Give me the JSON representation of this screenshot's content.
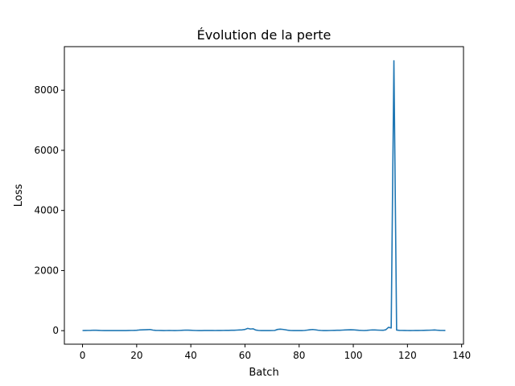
{
  "chart_data": {
    "type": "line",
    "title": "Évolution de la perte",
    "xlabel": "Batch",
    "ylabel": "Loss",
    "xlim": [
      -6.7,
      140.7
    ],
    "ylim": [
      -450,
      9450
    ],
    "xticks": [
      0,
      20,
      40,
      60,
      80,
      100,
      120,
      140
    ],
    "yticks": [
      0,
      2000,
      4000,
      6000,
      8000
    ],
    "grid": false,
    "line_color": "#1f77b4",
    "series": [
      {
        "values": [
          5,
          6,
          8,
          10,
          15,
          12,
          9,
          5,
          3,
          2,
          4,
          3,
          5,
          4,
          3,
          5,
          4,
          6,
          8,
          10,
          14,
          22,
          28,
          30,
          34,
          38,
          18,
          10,
          8,
          6,
          4,
          5,
          6,
          5,
          4,
          5,
          8,
          12,
          18,
          16,
          12,
          8,
          5,
          3,
          4,
          6,
          8,
          7,
          6,
          5,
          6,
          7,
          8,
          9,
          10,
          12,
          14,
          18,
          22,
          28,
          40,
          75,
          55,
          62,
          20,
          8,
          4,
          3,
          2,
          3,
          5,
          8,
          40,
          50,
          42,
          28,
          12,
          5,
          3,
          2,
          3,
          4,
          8,
          18,
          30,
          38,
          28,
          15,
          8,
          4,
          3,
          5,
          8,
          10,
          12,
          14,
          18,
          22,
          26,
          30,
          28,
          20,
          12,
          8,
          5,
          10,
          18,
          25,
          22,
          18,
          15,
          12,
          30,
          110,
          90,
          8980,
          20,
          10,
          8,
          6,
          5,
          4,
          5,
          6,
          7,
          8,
          10,
          12,
          15,
          18,
          22,
          15,
          10,
          8,
          6
        ]
      }
    ]
  }
}
